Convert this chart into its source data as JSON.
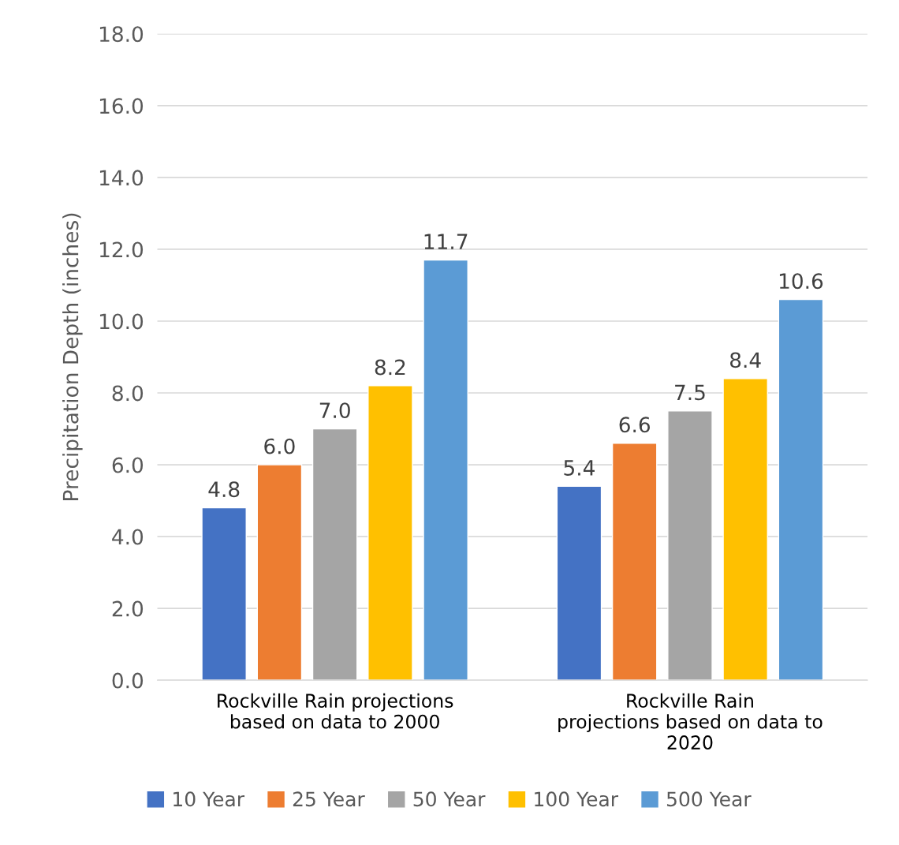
{
  "chart_data": {
    "type": "bar",
    "ylabel": "Precipitation Depth (inches)",
    "categories": [
      "Rockville Rain projections\nbased on data to 2000",
      "Rockville Rain\nprojections based on data to\n2020"
    ],
    "series": [
      {
        "name": "10 Year",
        "color": "#4472c4",
        "values": [
          4.8,
          5.4
        ],
        "value_labels": [
          "4.8",
          "5.4"
        ]
      },
      {
        "name": "25 Year",
        "color": "#ed7d31",
        "values": [
          6.0,
          6.6
        ],
        "value_labels": [
          "6.0",
          "6.6"
        ]
      },
      {
        "name": "50 Year",
        "color": "#a5a5a5",
        "values": [
          7.0,
          7.5
        ],
        "value_labels": [
          "7.0",
          "7.5"
        ]
      },
      {
        "name": "100 Year",
        "color": "#ffc000",
        "values": [
          8.2,
          8.4
        ],
        "value_labels": [
          "8.2",
          "8.4"
        ]
      },
      {
        "name": "500 Year",
        "color": "#5b9bd5",
        "values": [
          11.7,
          10.6
        ],
        "value_labels": [
          "11.7",
          "10.6"
        ]
      }
    ],
    "ylim": [
      0,
      18
    ],
    "yticks": [
      {
        "value": 0,
        "label": "0.0"
      },
      {
        "value": 2,
        "label": "2.0"
      },
      {
        "value": 4,
        "label": "4.0"
      },
      {
        "value": 6,
        "label": "6.0"
      },
      {
        "value": 8,
        "label": "8.0"
      },
      {
        "value": 10,
        "label": "10.0"
      },
      {
        "value": 12,
        "label": "12.0"
      },
      {
        "value": 14,
        "label": "14.0"
      },
      {
        "value": 16,
        "label": "16.0"
      },
      {
        "value": 18,
        "label": "18.0"
      }
    ],
    "grid": "y",
    "legend": "bottom"
  }
}
